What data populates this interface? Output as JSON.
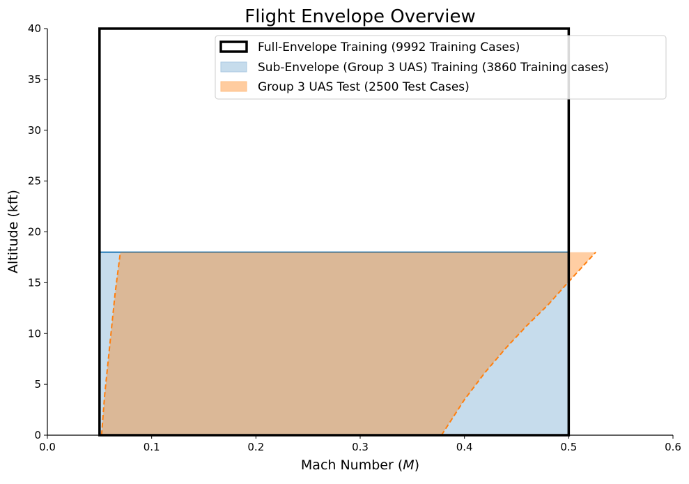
{
  "chart_data": {
    "type": "area",
    "title": "Flight Envelope Overview",
    "xlabel_text": "Mach Number (",
    "xlabel_symbol": "M",
    "xlabel_tail": ")",
    "ylabel": "Altitude (kft)",
    "xlim": [
      0.0,
      0.6
    ],
    "ylim": [
      0,
      40
    ],
    "x_ticks": [
      "0.0",
      "0.1",
      "0.2",
      "0.3",
      "0.4",
      "0.5",
      "0.6"
    ],
    "y_ticks": [
      "0",
      "5",
      "10",
      "15",
      "20",
      "25",
      "30",
      "35",
      "40"
    ],
    "x_tick_values": [
      0.0,
      0.1,
      0.2,
      0.3,
      0.4,
      0.5,
      0.6
    ],
    "y_tick_values": [
      0,
      5,
      10,
      15,
      20,
      25,
      30,
      35,
      40
    ],
    "grid": false,
    "legend_position": "top-right",
    "series": [
      {
        "name": "Full-Envelope Training (9992 Training Cases)",
        "kind": "rectangle-outline",
        "color": "#000000",
        "x_range": [
          0.05,
          0.5
        ],
        "y_range": [
          0,
          40
        ]
      },
      {
        "name": "Sub-Envelope (Group 3 UAS) Training (3860 Training cases)",
        "kind": "filled-region",
        "color": "#1f77b4",
        "fill": "#c6dcec",
        "polygon": [
          [
            0.05,
            0
          ],
          [
            0.05,
            18
          ],
          [
            0.5,
            18
          ],
          [
            0.5,
            0
          ]
        ]
      },
      {
        "name": "Group 3 UAS Test (2500 Test Cases)",
        "kind": "filled-region",
        "color": "#ff7f0e",
        "fill": "#ffcc9f",
        "left_boundary": [
          [
            0.052,
            0
          ],
          [
            0.055,
            4
          ],
          [
            0.06,
            9
          ],
          [
            0.065,
            14
          ],
          [
            0.07,
            18
          ]
        ],
        "right_boundary": [
          [
            0.378,
            0
          ],
          [
            0.4,
            3.5
          ],
          [
            0.42,
            6.2
          ],
          [
            0.44,
            8.6
          ],
          [
            0.46,
            10.8
          ],
          [
            0.48,
            12.8
          ],
          [
            0.5,
            15.1
          ],
          [
            0.526,
            18
          ]
        ],
        "top": 18
      }
    ]
  }
}
